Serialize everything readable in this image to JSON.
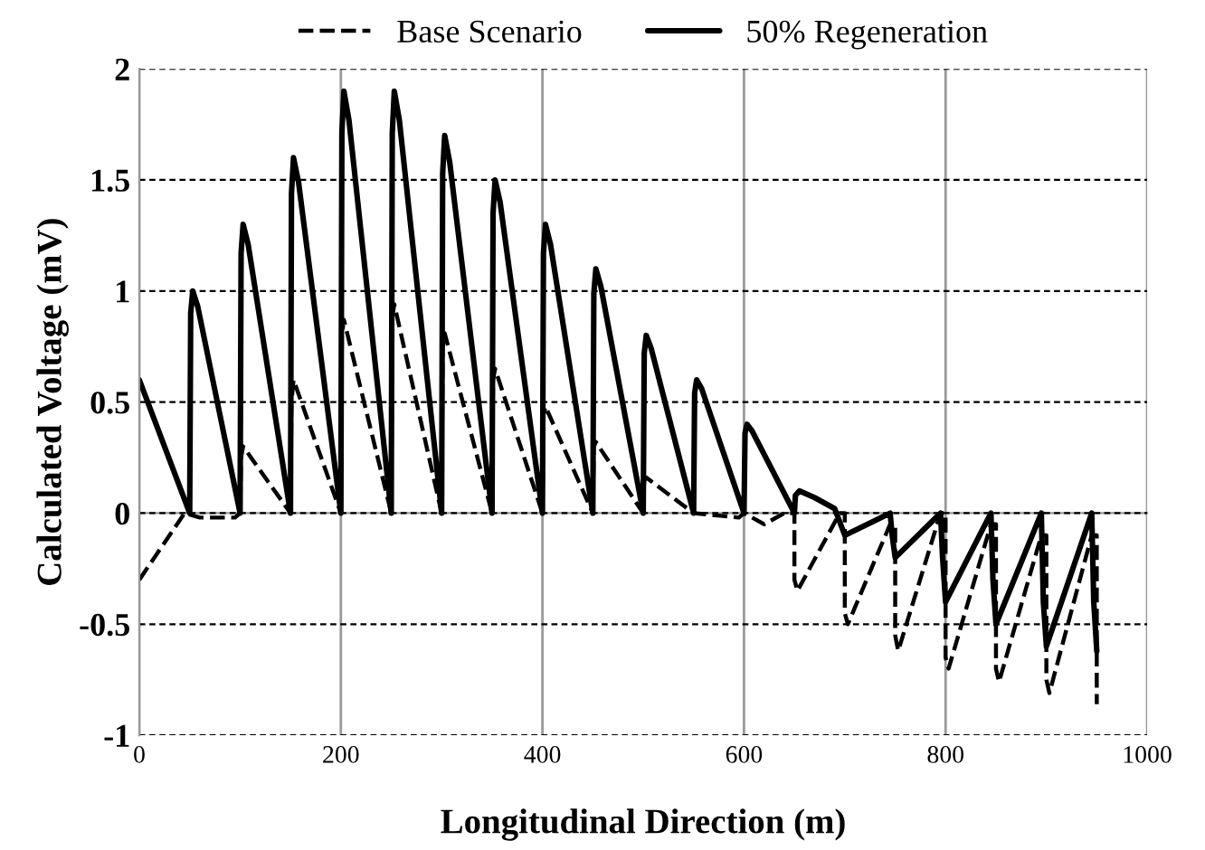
{
  "chart_data": {
    "type": "line",
    "xlabel": "Longitudinal Direction (m)",
    "ylabel": "Calculated Voltage (mV)",
    "xlim": [
      0,
      1000
    ],
    "xticks": [
      0,
      200,
      400,
      600,
      800,
      1000
    ],
    "ylim": [
      -1,
      2
    ],
    "yticks": [
      -1,
      -0.5,
      0,
      0.5,
      1,
      1.5,
      2
    ],
    "grid": true,
    "legend": "top",
    "marker": "none",
    "series": [
      {
        "name": "Base Scenario",
        "color": "#000000",
        "line_style": "dashed",
        "x": [
          0,
          45,
          60,
          95,
          100,
          101,
          103,
          150,
          151,
          153,
          200,
          201,
          203,
          250,
          251,
          253,
          300,
          301,
          303,
          350,
          351,
          353,
          400,
          401,
          403,
          450,
          451,
          453,
          500,
          501,
          503,
          550,
          595,
          600,
          620,
          640,
          650,
          650,
          653,
          695,
          700,
          700,
          703,
          745,
          750,
          750,
          753,
          795,
          800,
          800,
          803,
          845,
          850,
          850,
          853,
          895,
          900,
          900,
          903,
          945,
          950,
          950
        ],
        "values": [
          -0.3,
          0,
          -0.02,
          -0.02,
          0,
          0.25,
          0.3,
          0,
          0.5,
          0.6,
          0,
          0.8,
          0.87,
          0,
          0.88,
          0.94,
          0,
          0.75,
          0.81,
          0,
          0.6,
          0.65,
          0,
          0.44,
          0.48,
          0,
          0.3,
          0.32,
          0,
          0.15,
          0.16,
          0,
          -0.02,
          0,
          -0.05,
          0,
          0,
          -0.3,
          -0.35,
          0,
          0,
          -0.45,
          -0.5,
          -0.05,
          -0.05,
          -0.55,
          -0.62,
          0,
          0,
          -0.65,
          -0.7,
          -0.05,
          -0.05,
          -0.7,
          -0.76,
          -0.1,
          -0.1,
          -0.75,
          -0.81,
          -0.1,
          -0.1,
          -0.86
        ]
      },
      {
        "name": "50% Regeneration",
        "color": "#000000",
        "line_style": "solid",
        "x": [
          0,
          50,
          51,
          53,
          58,
          100,
          101,
          103,
          108,
          150,
          151,
          153,
          158,
          200,
          201,
          203,
          208,
          250,
          251,
          253,
          258,
          300,
          301,
          303,
          308,
          350,
          351,
          353,
          358,
          400,
          401,
          403,
          408,
          450,
          451,
          453,
          458,
          500,
          501,
          503,
          508,
          550,
          551,
          553,
          558,
          600,
          601,
          603,
          608,
          650,
          651,
          655,
          670,
          690,
          700,
          745,
          747,
          750,
          795,
          797,
          800,
          845,
          847,
          850,
          895,
          897,
          900,
          945,
          947,
          950
        ],
        "values": [
          0.6,
          0,
          0.9,
          1.0,
          0.93,
          0,
          1.17,
          1.3,
          1.21,
          0,
          1.44,
          1.6,
          1.49,
          0,
          1.71,
          1.9,
          1.77,
          0,
          1.71,
          1.9,
          1.77,
          0,
          1.53,
          1.7,
          1.58,
          0,
          1.35,
          1.5,
          1.4,
          0,
          1.17,
          1.3,
          1.21,
          0,
          0.99,
          1.1,
          1.02,
          0,
          0.72,
          0.8,
          0.74,
          0,
          0.54,
          0.6,
          0.56,
          0,
          0.36,
          0.4,
          0.37,
          0,
          0.08,
          0.1,
          0.07,
          0.02,
          -0.1,
          0,
          -0.1,
          -0.2,
          0,
          -0.2,
          -0.4,
          0,
          -0.3,
          -0.5,
          0,
          -0.4,
          -0.6,
          0,
          -0.4,
          -0.62
        ]
      }
    ]
  }
}
